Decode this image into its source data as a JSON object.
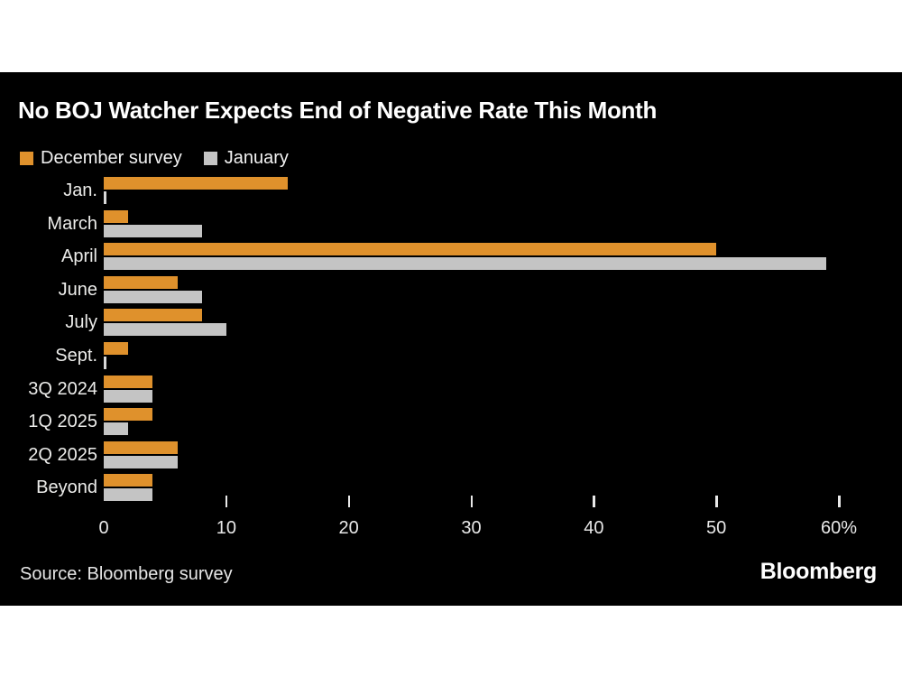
{
  "title": "No BOJ Watcher Expects End of Negative Rate This Month",
  "legend": {
    "items": [
      {
        "label": "December survey",
        "color": "#df912c"
      },
      {
        "label": "January",
        "color": "#c4c4c4"
      }
    ]
  },
  "footer": {
    "source": "Source: Bloomberg survey",
    "logo": "Bloomberg"
  },
  "colors": {
    "page_bg": "#ffffff",
    "card_bg": "#000000",
    "title_text": "#ffffff",
    "muted_text": "#e8e8e8",
    "december_orange": "#df912c",
    "january_gray": "#c4c4c4"
  },
  "chart_data": {
    "type": "bar",
    "orientation": "horizontal",
    "title": "No BOJ Watcher Expects End of Negative Rate This Month",
    "categories": [
      "Jan.",
      "March",
      "April",
      "June",
      "July",
      "Sept.",
      "3Q 2024",
      "1Q 2025",
      "2Q 2025",
      "Beyond"
    ],
    "series": [
      {
        "name": "December survey",
        "color": "#df912c",
        "values": [
          15,
          2,
          50,
          6,
          8,
          2,
          4,
          4,
          6,
          4
        ]
      },
      {
        "name": "January",
        "color": "#c4c4c4",
        "values": [
          0,
          8,
          59,
          8,
          10,
          0,
          4,
          2,
          6,
          4
        ]
      }
    ],
    "xlabel": "",
    "ylabel": "",
    "unit": "%",
    "xlim": [
      0,
      60
    ],
    "x_ticks": [
      0,
      10,
      20,
      30,
      40,
      50,
      60
    ],
    "x_tick_labels": [
      "0",
      "10",
      "20",
      "30",
      "40",
      "50",
      "60%"
    ],
    "grid": false,
    "legend_position": "top-left"
  }
}
